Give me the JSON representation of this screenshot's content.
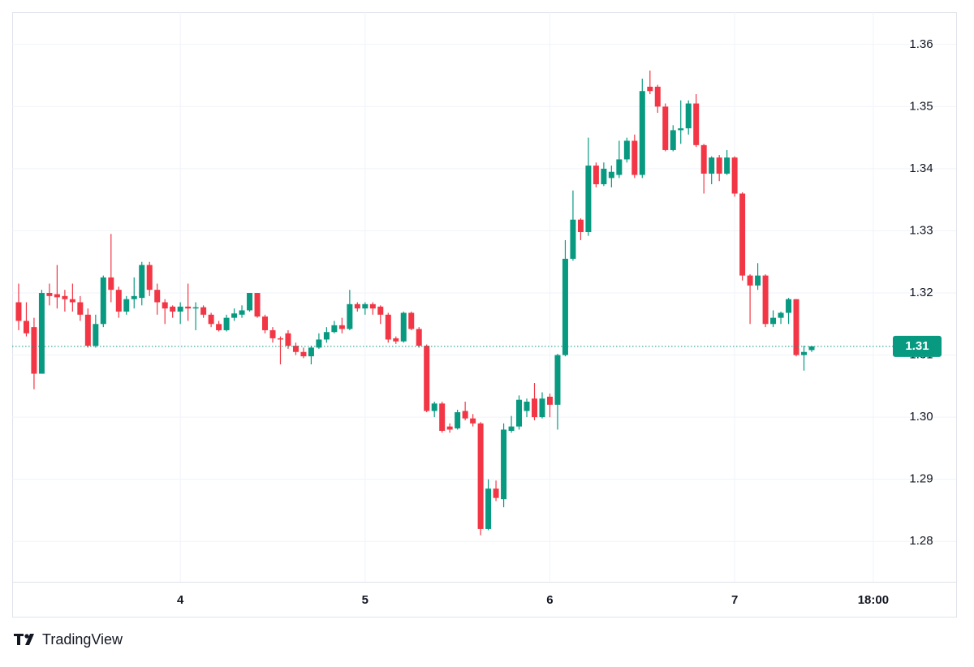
{
  "chart_data": {
    "type": "candlestick",
    "x": [
      3.125,
      3.1667,
      3.2083,
      3.25,
      3.2917,
      3.3333,
      3.375,
      3.4167,
      3.4583,
      3.5,
      3.5417,
      3.5833,
      3.625,
      3.6667,
      3.7083,
      3.75,
      3.7917,
      3.8333,
      3.875,
      3.9167,
      3.9583,
      4,
      4.0417,
      4.0833,
      4.125,
      4.1667,
      4.2083,
      4.25,
      4.2917,
      4.3333,
      4.375,
      4.4167,
      4.4583,
      4.5,
      4.5417,
      4.5833,
      4.625,
      4.6667,
      4.7083,
      4.75,
      4.7917,
      4.8333,
      4.875,
      4.9167,
      4.9583,
      5,
      5.0417,
      5.0833,
      5.125,
      5.1667,
      5.2083,
      5.25,
      5.2917,
      5.3333,
      5.375,
      5.4167,
      5.4583,
      5.5,
      5.5417,
      5.5833,
      5.625,
      5.6667,
      5.7083,
      5.75,
      5.7917,
      5.8333,
      5.875,
      5.9167,
      5.9583,
      6,
      6.0417,
      6.0833,
      6.125,
      6.1667,
      6.2083,
      6.25,
      6.2917,
      6.3333,
      6.375,
      6.4167,
      6.4583,
      6.5,
      6.5417,
      6.5833,
      6.625,
      6.6667,
      6.7083,
      6.75,
      6.7917,
      6.8333,
      6.875,
      6.9167,
      6.9583,
      7,
      7.0417,
      7.0833,
      7.125,
      7.1667,
      7.2083,
      7.25,
      7.2917,
      7.3333,
      7.375,
      7.4167
    ],
    "open": [
      1.3185,
      1.3155,
      1.3145,
      1.307,
      1.32,
      1.3198,
      1.3195,
      1.319,
      1.3185,
      1.3165,
      1.3115,
      1.315,
      1.3225,
      1.3205,
      1.317,
      1.319,
      1.3192,
      1.3245,
      1.3205,
      1.3185,
      1.3178,
      1.317,
      1.3178,
      1.3175,
      1.3177,
      1.3165,
      1.315,
      1.314,
      1.316,
      1.3165,
      1.3172,
      1.32,
      1.3162,
      1.314,
      1.3127,
      1.3135,
      1.3115,
      1.3105,
      1.3098,
      1.3112,
      1.3125,
      1.3137,
      1.3148,
      1.3142,
      1.3182,
      1.3175,
      1.3182,
      1.3178,
      1.3165,
      1.3127,
      1.3122,
      1.3168,
      1.3142,
      1.3115,
      1.301,
      1.3022,
      1.2985,
      1.2982,
      1.301,
      1.2998,
      1.299,
      1.282,
      1.2885,
      1.2868,
      1.2978,
      1.2985,
      1.301,
      1.303,
      1.3,
      1.3033,
      1.302,
      1.31,
      1.3255,
      1.3318,
      1.3298,
      1.3405,
      1.3375,
      1.3385,
      1.339,
      1.3415,
      1.3445,
      1.339,
      1.3532,
      1.3532,
      1.35,
      1.343,
      1.3462,
      1.3465,
      1.3505,
      1.3438,
      1.3392,
      1.3418,
      1.3392,
      1.3418,
      1.336,
      1.3228,
      1.3212,
      1.3228,
      1.315,
      1.316,
      1.3168,
      1.319,
      1.31,
      1.3108
    ],
    "high": [
      1.3215,
      1.3185,
      1.316,
      1.3205,
      1.3215,
      1.3245,
      1.3205,
      1.3215,
      1.3195,
      1.3175,
      1.3165,
      1.3228,
      1.3295,
      1.321,
      1.3195,
      1.3225,
      1.325,
      1.325,
      1.3215,
      1.319,
      1.318,
      1.3185,
      1.3215,
      1.3185,
      1.318,
      1.3168,
      1.3155,
      1.3165,
      1.3175,
      1.318,
      1.32,
      1.32,
      1.3165,
      1.3145,
      1.313,
      1.314,
      1.312,
      1.3112,
      1.3115,
      1.3135,
      1.3145,
      1.3155,
      1.316,
      1.3205,
      1.3185,
      1.3185,
      1.3185,
      1.318,
      1.3168,
      1.313,
      1.317,
      1.317,
      1.3145,
      1.3117,
      1.3025,
      1.3025,
      1.299,
      1.3012,
      1.3025,
      1.3005,
      1.2992,
      1.29,
      1.2898,
      1.299,
      1.3002,
      1.3035,
      1.303,
      1.3055,
      1.304,
      1.3038,
      1.3102,
      1.3285,
      1.3365,
      1.332,
      1.345,
      1.341,
      1.341,
      1.3405,
      1.3445,
      1.345,
      1.3455,
      1.3545,
      1.3558,
      1.3535,
      1.3505,
      1.347,
      1.351,
      1.351,
      1.352,
      1.344,
      1.342,
      1.3422,
      1.343,
      1.342,
      1.3362,
      1.323,
      1.3248,
      1.323,
      1.3172,
      1.317,
      1.3192,
      1.319,
      1.3115,
      1.3115
    ],
    "low": [
      1.314,
      1.313,
      1.3045,
      1.307,
      1.318,
      1.3175,
      1.317,
      1.317,
      1.3155,
      1.3112,
      1.3112,
      1.3145,
      1.3185,
      1.316,
      1.3165,
      1.3175,
      1.318,
      1.3195,
      1.3165,
      1.315,
      1.316,
      1.315,
      1.3155,
      1.314,
      1.316,
      1.3145,
      1.3138,
      1.3138,
      1.3155,
      1.316,
      1.317,
      1.316,
      1.3135,
      1.312,
      1.3085,
      1.311,
      1.31,
      1.3095,
      1.3085,
      1.311,
      1.312,
      1.3135,
      1.3135,
      1.314,
      1.317,
      1.3165,
      1.3165,
      1.315,
      1.312,
      1.3118,
      1.312,
      1.314,
      1.3112,
      1.3008,
      1.3,
      1.2975,
      1.2975,
      1.298,
      1.2995,
      1.2985,
      1.281,
      1.2818,
      1.2865,
      1.2855,
      1.2975,
      1.298,
      1.3,
      1.2995,
      1.2998,
      1.3,
      1.298,
      1.3098,
      1.3252,
      1.3285,
      1.3292,
      1.337,
      1.3372,
      1.337,
      1.3385,
      1.341,
      1.3385,
      1.3385,
      1.352,
      1.349,
      1.3428,
      1.3428,
      1.344,
      1.3455,
      1.3435,
      1.336,
      1.3375,
      1.338,
      1.339,
      1.3355,
      1.322,
      1.315,
      1.3205,
      1.3145,
      1.3145,
      1.315,
      1.315,
      1.3098,
      1.3075,
      1.3105
    ],
    "close": [
      1.3155,
      1.3135,
      1.307,
      1.32,
      1.3195,
      1.3193,
      1.319,
      1.3185,
      1.3165,
      1.3115,
      1.315,
      1.3225,
      1.3205,
      1.317,
      1.319,
      1.3195,
      1.3245,
      1.3205,
      1.3185,
      1.3175,
      1.317,
      1.3178,
      1.3175,
      1.3177,
      1.3165,
      1.315,
      1.314,
      1.316,
      1.3167,
      1.3172,
      1.32,
      1.3162,
      1.314,
      1.3127,
      1.3125,
      1.3115,
      1.3105,
      1.3098,
      1.3112,
      1.3125,
      1.3137,
      1.3148,
      1.3142,
      1.3182,
      1.3175,
      1.3182,
      1.3175,
      1.3165,
      1.3125,
      1.3122,
      1.3168,
      1.3142,
      1.3115,
      1.301,
      1.3022,
      1.2978,
      1.298,
      1.3008,
      1.2998,
      1.299,
      1.282,
      1.2885,
      1.287,
      1.298,
      1.2985,
      1.3028,
      1.3025,
      1.3,
      1.303,
      1.302,
      1.31,
      1.3255,
      1.3318,
      1.3298,
      1.3405,
      1.3375,
      1.34,
      1.3395,
      1.3415,
      1.3445,
      1.339,
      1.3525,
      1.3525,
      1.35,
      1.343,
      1.3462,
      1.3465,
      1.3505,
      1.3438,
      1.3392,
      1.3418,
      1.3392,
      1.3418,
      1.336,
      1.3228,
      1.3212,
      1.3228,
      1.315,
      1.316,
      1.3168,
      1.319,
      1.31,
      1.3105,
      1.3114
    ],
    "up_color": "#089981",
    "down_color": "#f23645",
    "xlim": [
      3.09,
      7.834
    ],
    "xticks": [
      4,
      5,
      6,
      7,
      {
        "value": 7.75,
        "label": "18:00"
      }
    ],
    "ylim": [
      1.2735,
      1.3652
    ],
    "yticks": [
      1.28,
      1.29,
      {
        "value": 1.3,
        "label": "1.30"
      },
      1.31,
      1.32,
      1.33,
      1.34,
      1.35,
      1.36
    ],
    "grid": true,
    "last_price": {
      "value": 1.3114,
      "label": "1.31"
    },
    "branding": "TradingView"
  }
}
